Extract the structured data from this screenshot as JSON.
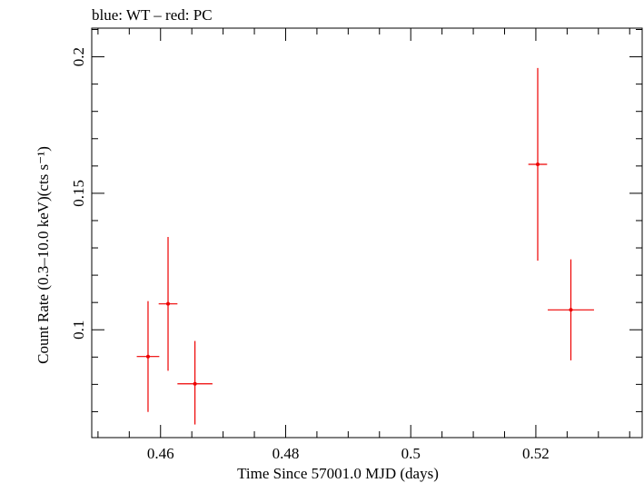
{
  "chart_data": {
    "type": "scatter",
    "title": "blue: WT – red: PC",
    "xlabel": "Time Since 57001.0 MJD (days)",
    "ylabel": "Count Rate (0.3–10.0 keV)(cts s⁻¹)",
    "xlim": [
      0.449,
      0.537
    ],
    "ylim": [
      0.0605,
      0.2105
    ],
    "x_ticks": [
      {
        "value": 0.46,
        "label": "0.46"
      },
      {
        "value": 0.48,
        "label": "0.48"
      },
      {
        "value": 0.5,
        "label": "0.5"
      },
      {
        "value": 0.52,
        "label": "0.52"
      }
    ],
    "y_ticks": [
      {
        "value": 0.1,
        "label": "0.1"
      },
      {
        "value": 0.15,
        "label": "0.15"
      },
      {
        "value": 0.2,
        "label": "0.2"
      }
    ],
    "grid": false,
    "series": [
      {
        "name": "PC",
        "color": "#ee0000",
        "points": [
          {
            "x": 0.458,
            "xerr": 0.0018,
            "y": 0.0902,
            "yerr_low": 0.0203,
            "yerr_high": 0.0203
          },
          {
            "x": 0.4612,
            "xerr": 0.0015,
            "y": 0.1095,
            "yerr_low": 0.0245,
            "yerr_high": 0.0245
          },
          {
            "x": 0.4655,
            "xerr": 0.0028,
            "y": 0.0802,
            "yerr_low": 0.0149,
            "yerr_high": 0.0157
          },
          {
            "x": 0.5203,
            "xerr": 0.0015,
            "y": 0.1606,
            "yerr_low": 0.0353,
            "yerr_high": 0.0353
          },
          {
            "x": 0.5256,
            "xerr": 0.0037,
            "y": 0.1073,
            "yerr_low": 0.0185,
            "yerr_high": 0.0185
          }
        ]
      }
    ]
  }
}
